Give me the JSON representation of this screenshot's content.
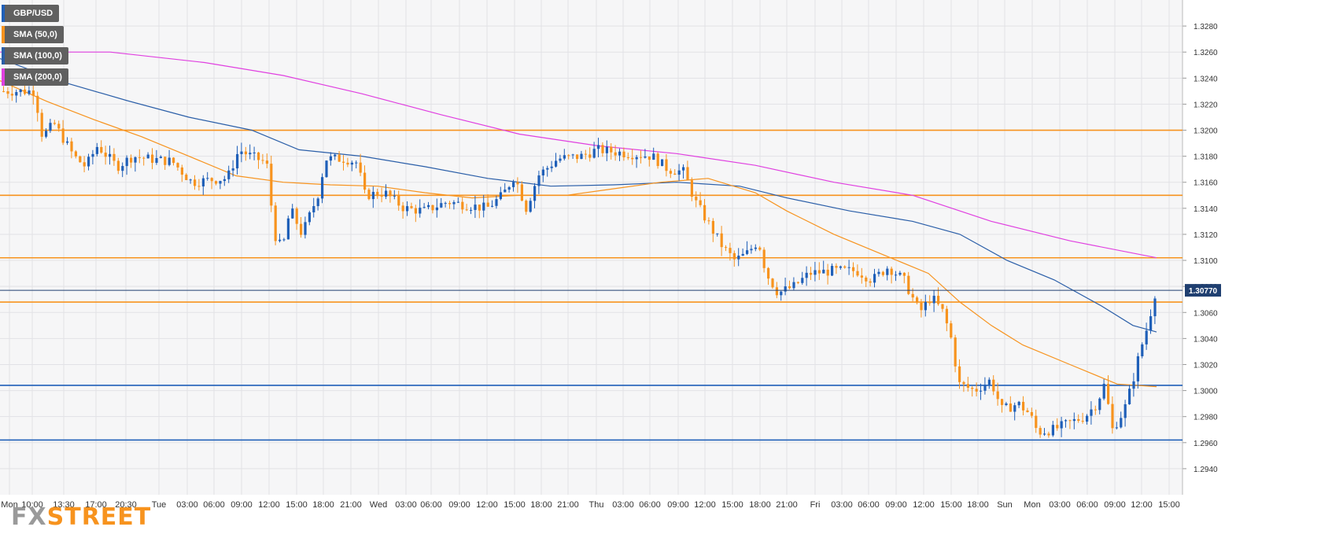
{
  "chart_data": {
    "type": "candlestick",
    "symbol": "GBP/USD",
    "current_price": "1.30770",
    "ylim": [
      1.292,
      1.33
    ],
    "y_ticks": [
      "1.2940",
      "1.2960",
      "1.2980",
      "1.3000",
      "1.3020",
      "1.3040",
      "1.3060",
      "1.3080",
      "1.3100",
      "1.3120",
      "1.3140",
      "1.3160",
      "1.3180",
      "1.3200",
      "1.3220",
      "1.3240",
      "1.3260",
      "1.3280"
    ],
    "x_tick_labels": [
      "Mon",
      "10:00",
      "13:30",
      "17:00",
      "20:30",
      "Tue",
      "03:00",
      "06:00",
      "09:00",
      "12:00",
      "15:00",
      "18:00",
      "21:00",
      "Wed",
      "03:00",
      "06:00",
      "09:00",
      "12:00",
      "15:00",
      "18:00",
      "21:00",
      "Thu",
      "03:00",
      "06:00",
      "09:00",
      "12:00",
      "15:00",
      "18:00",
      "21:00",
      "Fri",
      "03:00",
      "06:00",
      "09:00",
      "12:00",
      "15:00",
      "18:00",
      "Sun",
      "Mon",
      "03:00",
      "06:00",
      "09:00",
      "12:00",
      "15:00"
    ],
    "legend": [
      {
        "label": "GBP/USD",
        "color": "#1f5fb8"
      },
      {
        "label": "SMA (50,0)",
        "color": "#f7931e"
      },
      {
        "label": "SMA (100,0)",
        "color": "#2a5ea8"
      },
      {
        "label": "SMA (200,0)",
        "color": "#e040e0"
      }
    ],
    "horizontal_levels": [
      {
        "value": 1.32,
        "color": "#f7931e"
      },
      {
        "value": 1.315,
        "color": "#f7931e"
      },
      {
        "value": 1.3102,
        "color": "#f7931e"
      },
      {
        "value": 1.3068,
        "color": "#f7931e"
      },
      {
        "value": 1.3004,
        "color": "#1f5fb8"
      },
      {
        "value": 1.2962,
        "color": "#1f5fb8"
      }
    ],
    "price_path": [
      [
        0,
        1.323
      ],
      [
        45,
        1.323
      ],
      [
        55,
        1.3195
      ],
      [
        70,
        1.3205
      ],
      [
        95,
        1.318
      ],
      [
        110,
        1.3172
      ],
      [
        125,
        1.3188
      ],
      [
        150,
        1.3172
      ],
      [
        170,
        1.318
      ],
      [
        190,
        1.3178
      ],
      [
        220,
        1.3176
      ],
      [
        245,
        1.316
      ],
      [
        270,
        1.3162
      ],
      [
        290,
        1.3163
      ],
      [
        305,
        1.3185
      ],
      [
        320,
        1.318
      ],
      [
        340,
        1.3175
      ],
      [
        350,
        1.312
      ],
      [
        360,
        1.3108
      ],
      [
        370,
        1.314
      ],
      [
        385,
        1.312
      ],
      [
        395,
        1.3135
      ],
      [
        405,
        1.315
      ],
      [
        415,
        1.3178
      ],
      [
        440,
        1.3178
      ],
      [
        455,
        1.3175
      ],
      [
        465,
        1.315
      ],
      [
        490,
        1.3152
      ],
      [
        515,
        1.314
      ],
      [
        540,
        1.3138
      ],
      [
        570,
        1.3145
      ],
      [
        600,
        1.3142
      ],
      [
        620,
        1.314
      ],
      [
        640,
        1.315
      ],
      [
        655,
        1.3165
      ],
      [
        670,
        1.314
      ],
      [
        685,
        1.3165
      ],
      [
        710,
        1.3178
      ],
      [
        740,
        1.318
      ],
      [
        760,
        1.3185
      ],
      [
        800,
        1.3182
      ],
      [
        830,
        1.318
      ],
      [
        850,
        1.317
      ],
      [
        870,
        1.3168
      ],
      [
        885,
        1.3145
      ],
      [
        900,
        1.313
      ],
      [
        920,
        1.311
      ],
      [
        935,
        1.31
      ],
      [
        950,
        1.3105
      ],
      [
        965,
        1.3115
      ],
      [
        975,
        1.309
      ],
      [
        990,
        1.3075
      ],
      [
        1010,
        1.308
      ],
      [
        1030,
        1.309
      ],
      [
        1060,
        1.3092
      ],
      [
        1090,
        1.3092
      ],
      [
        1110,
        1.3085
      ],
      [
        1130,
        1.3095
      ],
      [
        1150,
        1.3085
      ],
      [
        1170,
        1.306
      ],
      [
        1185,
        1.3072
      ],
      [
        1200,
        1.306
      ],
      [
        1210,
        1.304
      ],
      [
        1220,
        1.3005
      ],
      [
        1240,
        1.3
      ],
      [
        1260,
        1.3008
      ],
      [
        1275,
        1.2985
      ],
      [
        1295,
        1.299
      ],
      [
        1310,
        1.2982
      ],
      [
        1320,
        1.2968
      ],
      [
        1340,
        1.297
      ],
      [
        1360,
        1.2975
      ],
      [
        1380,
        1.298
      ],
      [
        1395,
        1.299
      ],
      [
        1405,
        1.3005
      ],
      [
        1415,
        1.297
      ],
      [
        1430,
        1.2985
      ],
      [
        1440,
        1.3005
      ],
      [
        1450,
        1.303
      ],
      [
        1460,
        1.305
      ],
      [
        1470,
        1.3077
      ]
    ],
    "sma50_path": [
      [
        0,
        1.3238
      ],
      [
        60,
        1.3222
      ],
      [
        120,
        1.3208
      ],
      [
        180,
        1.3195
      ],
      [
        240,
        1.318
      ],
      [
        300,
        1.3165
      ],
      [
        360,
        1.316
      ],
      [
        420,
        1.3158
      ],
      [
        480,
        1.3157
      ],
      [
        540,
        1.3152
      ],
      [
        600,
        1.3148
      ],
      [
        660,
        1.315
      ],
      [
        720,
        1.315
      ],
      [
        780,
        1.3155
      ],
      [
        840,
        1.316
      ],
      [
        900,
        1.3163
      ],
      [
        960,
        1.3152
      ],
      [
        1000,
        1.3138
      ],
      [
        1060,
        1.312
      ],
      [
        1120,
        1.3105
      ],
      [
        1180,
        1.309
      ],
      [
        1220,
        1.3068
      ],
      [
        1260,
        1.305
      ],
      [
        1300,
        1.3035
      ],
      [
        1360,
        1.302
      ],
      [
        1420,
        1.3005
      ],
      [
        1470,
        1.3003
      ]
    ],
    "sma100_path": [
      [
        0,
        1.3255
      ],
      [
        80,
        1.3237
      ],
      [
        160,
        1.3223
      ],
      [
        240,
        1.321
      ],
      [
        320,
        1.32
      ],
      [
        380,
        1.3185
      ],
      [
        460,
        1.318
      ],
      [
        540,
        1.3172
      ],
      [
        620,
        1.3163
      ],
      [
        700,
        1.3157
      ],
      [
        780,
        1.3158
      ],
      [
        860,
        1.316
      ],
      [
        940,
        1.3157
      ],
      [
        1000,
        1.3148
      ],
      [
        1080,
        1.3138
      ],
      [
        1160,
        1.313
      ],
      [
        1220,
        1.312
      ],
      [
        1280,
        1.31
      ],
      [
        1340,
        1.3085
      ],
      [
        1400,
        1.3065
      ],
      [
        1440,
        1.305
      ],
      [
        1470,
        1.3045
      ]
    ],
    "sma200_path": [
      [
        0,
        1.326
      ],
      [
        140,
        1.326
      ],
      [
        260,
        1.3252
      ],
      [
        360,
        1.3242
      ],
      [
        460,
        1.3228
      ],
      [
        560,
        1.3212
      ],
      [
        660,
        1.3197
      ],
      [
        760,
        1.3188
      ],
      [
        860,
        1.3182
      ],
      [
        960,
        1.3173
      ],
      [
        1060,
        1.316
      ],
      [
        1160,
        1.315
      ],
      [
        1260,
        1.313
      ],
      [
        1360,
        1.3115
      ],
      [
        1470,
        1.3102
      ]
    ]
  },
  "branding": {
    "fx": "FX",
    "street": "STREET"
  }
}
